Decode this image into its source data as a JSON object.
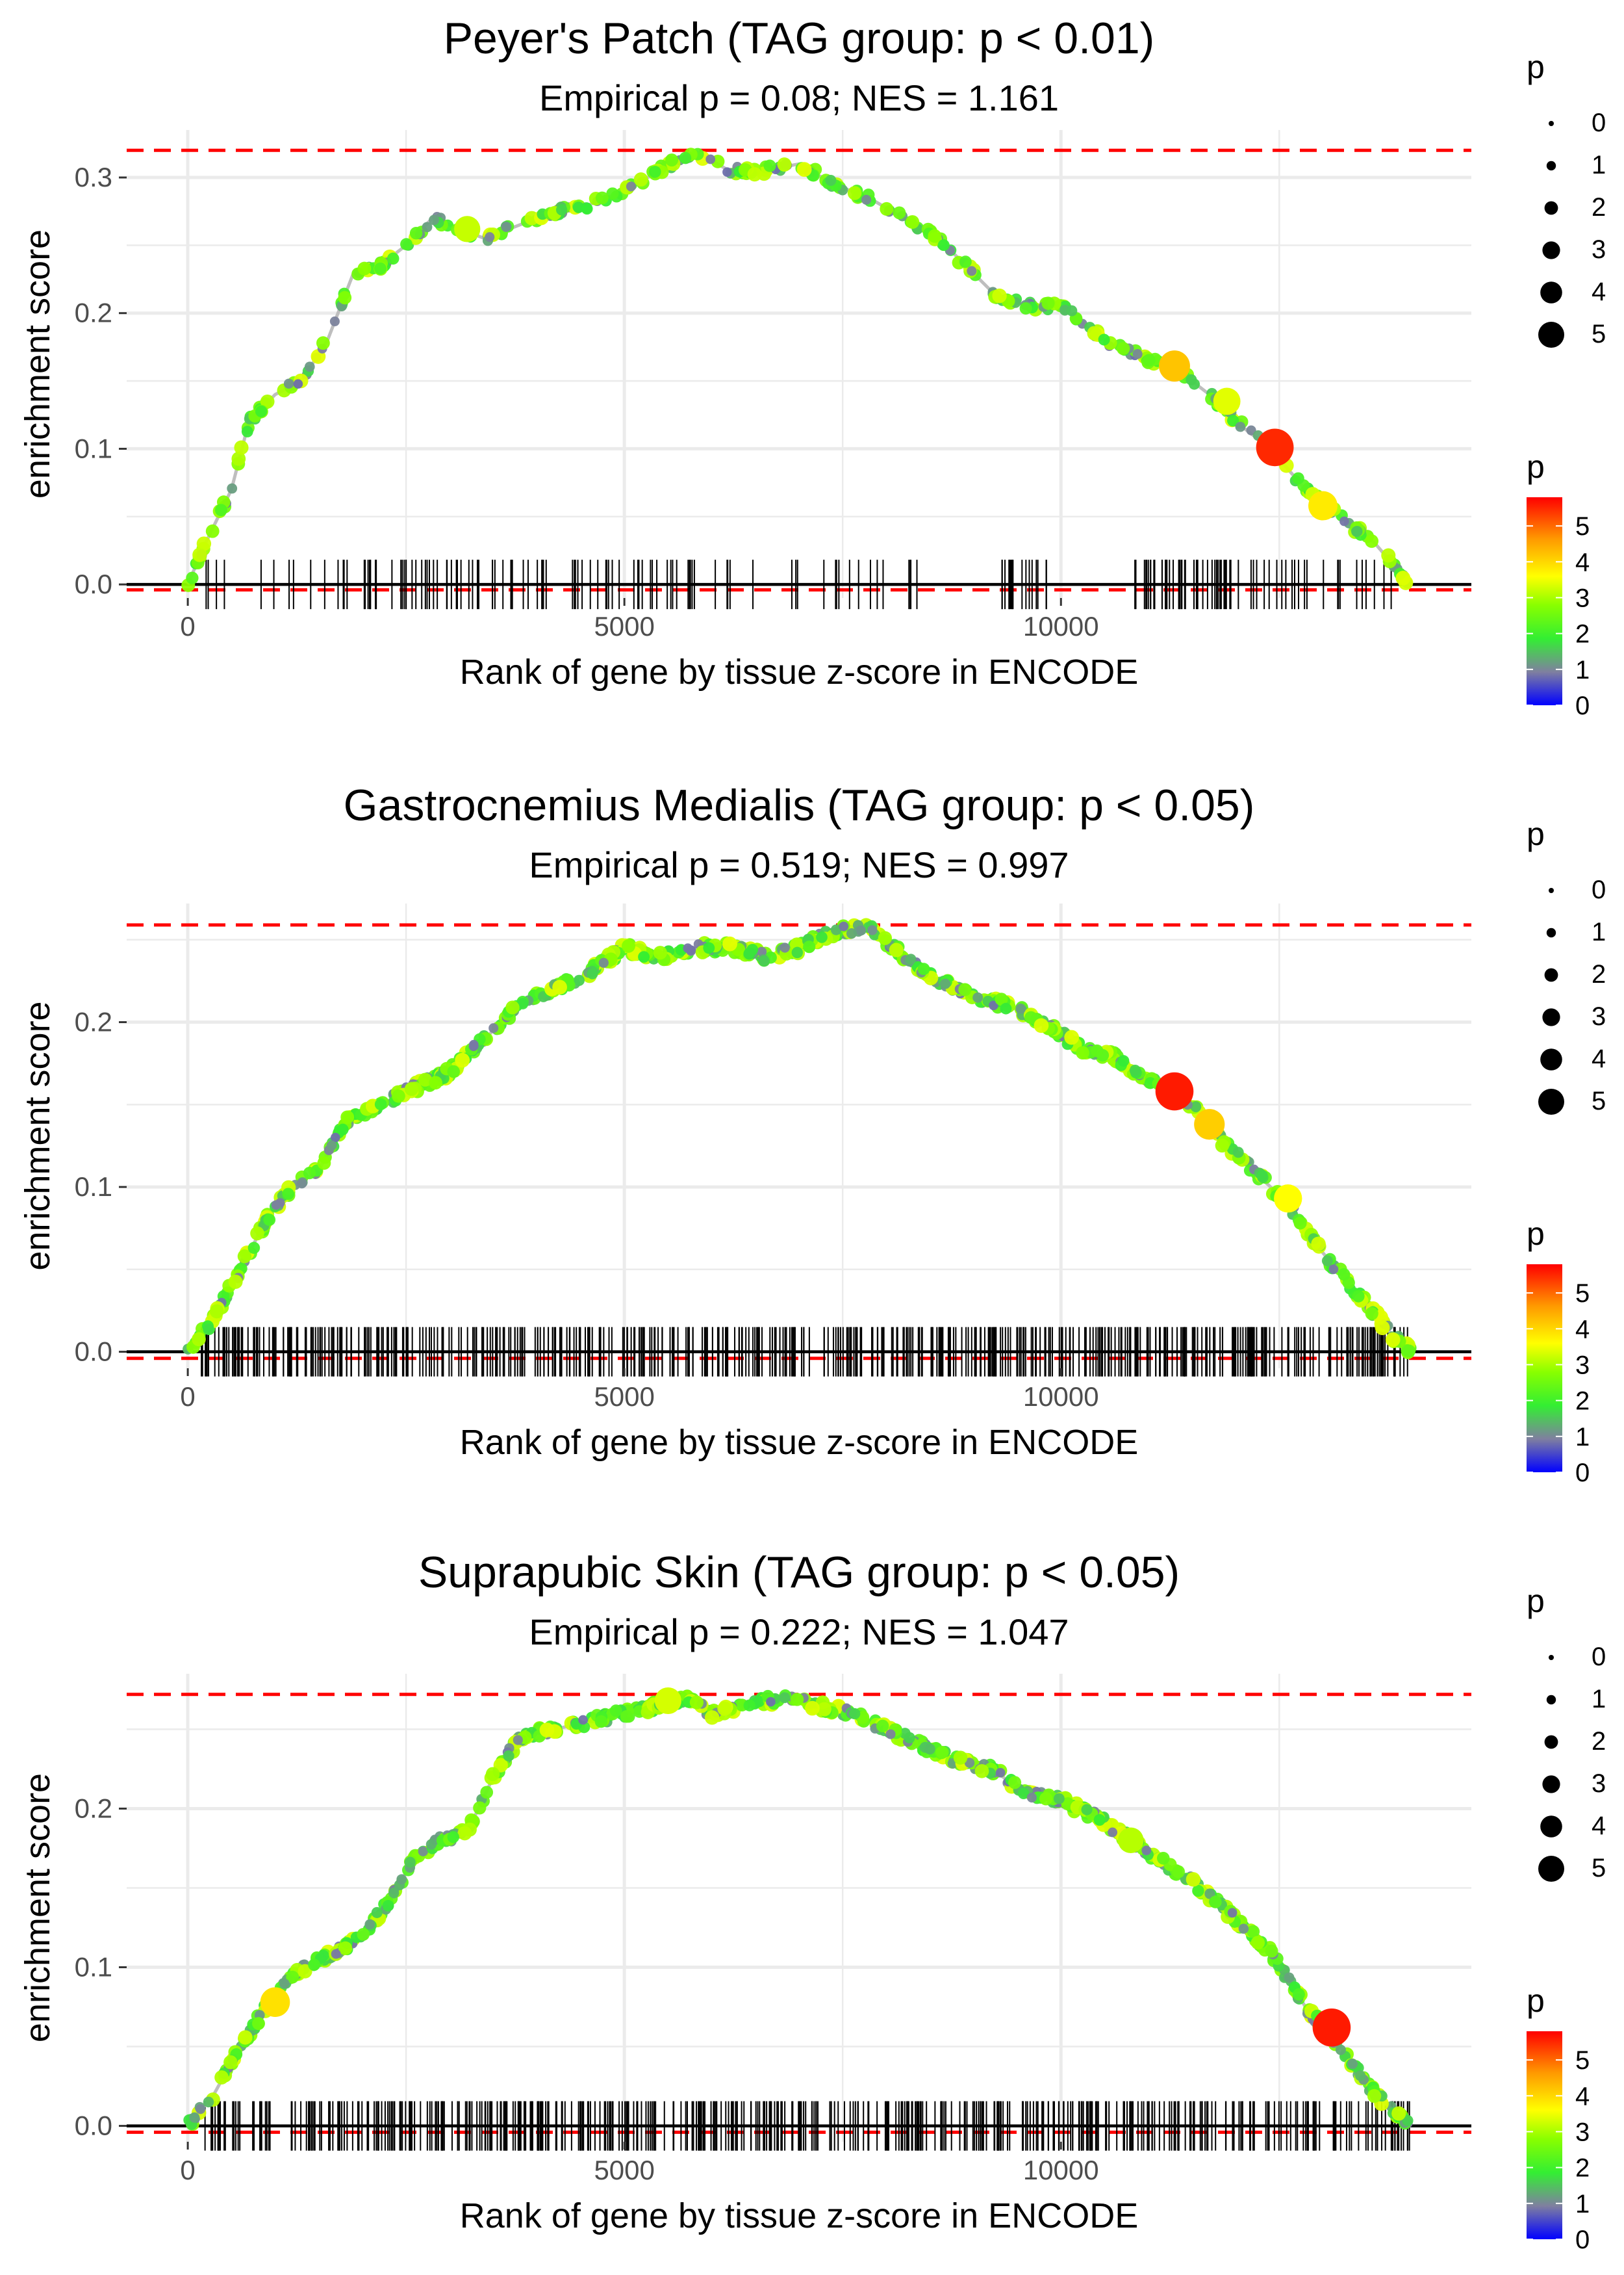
{
  "chart_data": [
    {
      "type": "line",
      "title": "Peyer's Patch (TAG group: p < 0.01)",
      "subtitle": "Empirical p = 0.08; NES = 1.161",
      "xlabel": "Rank of gene by tissue z-score in ENCODE",
      "ylabel": "enrichment score",
      "xlim": [
        -700,
        14700
      ],
      "ylim": [
        -0.01,
        0.335
      ],
      "xticks": [
        0,
        5000,
        10000
      ],
      "xtick_labels": [
        "0",
        "5000",
        "10000"
      ],
      "yticks": [
        0.0,
        0.1,
        0.2,
        0.3
      ],
      "ytick_labels": [
        "0.0",
        "0.1",
        "0.2",
        "0.3"
      ],
      "max_es": 0.32,
      "min_es": -0.004,
      "profile": [
        [
          0,
          0
        ],
        [
          200,
          0.03
        ],
        [
          500,
          0.07
        ],
        [
          700,
          0.12
        ],
        [
          1000,
          0.14
        ],
        [
          1300,
          0.15
        ],
        [
          1600,
          0.18
        ],
        [
          1900,
          0.23
        ],
        [
          2200,
          0.235
        ],
        [
          2500,
          0.25
        ],
        [
          2800,
          0.27
        ],
        [
          3000,
          0.265
        ],
        [
          3400,
          0.255
        ],
        [
          3800,
          0.265
        ],
        [
          4200,
          0.275
        ],
        [
          4600,
          0.28
        ],
        [
          5000,
          0.29
        ],
        [
          5400,
          0.305
        ],
        [
          5800,
          0.32
        ],
        [
          6200,
          0.305
        ],
        [
          6600,
          0.305
        ],
        [
          7000,
          0.31
        ],
        [
          7400,
          0.295
        ],
        [
          7800,
          0.285
        ],
        [
          8200,
          0.27
        ],
        [
          8600,
          0.255
        ],
        [
          9300,
          0.21
        ],
        [
          9700,
          0.205
        ],
        [
          10000,
          0.205
        ],
        [
          10500,
          0.18
        ],
        [
          11000,
          0.165
        ],
        [
          11300,
          0.16
        ],
        [
          11700,
          0.14
        ],
        [
          12100,
          0.115
        ],
        [
          12400,
          0.1
        ],
        [
          12800,
          0.07
        ],
        [
          13200,
          0.05
        ],
        [
          13600,
          0.03
        ],
        [
          14000,
          0
        ]
      ],
      "highlight_points": [
        {
          "rank": 12450,
          "es": 0.101,
          "p": 5.5
        },
        {
          "rank": 11300,
          "es": 0.161,
          "p": 4.2
        },
        {
          "rank": 13000,
          "es": 0.058,
          "p": 3.8
        },
        {
          "rank": 11900,
          "es": 0.135,
          "p": 3.4
        },
        {
          "rank": 3200,
          "es": 0.262,
          "p": 3.2
        }
      ],
      "hits": {
        "segments": [
          [
            100,
            8400,
            110
          ],
          [
            9300,
            9900,
            18
          ],
          [
            10800,
            12000,
            45
          ],
          [
            12000,
            13800,
            25
          ]
        ]
      },
      "legend_size": {
        "title": "p",
        "values": [
          "0",
          "1",
          "2",
          "3",
          "4",
          "5"
        ]
      },
      "legend_color": {
        "title": "p",
        "values": [
          "0",
          "1",
          "2",
          "3",
          "4",
          "5"
        ],
        "max": 5.8
      }
    },
    {
      "type": "line",
      "title": "Gastrocnemius Medialis (TAG group: p < 0.05)",
      "subtitle": "Empirical p = 0.519; NES = 0.997",
      "xlabel": "Rank of gene by tissue z-score in ENCODE",
      "ylabel": "enrichment score",
      "xlim": [
        -700,
        14700
      ],
      "ylim": [
        -0.01,
        0.272
      ],
      "xticks": [
        0,
        5000,
        10000
      ],
      "xtick_labels": [
        "0",
        "5000",
        "10000"
      ],
      "yticks": [
        0.0,
        0.1,
        0.2
      ],
      "ytick_labels": [
        "0.0",
        "0.1",
        "0.2"
      ],
      "max_es": 0.259,
      "min_es": -0.004,
      "profile": [
        [
          0,
          0
        ],
        [
          300,
          0.02
        ],
        [
          600,
          0.05
        ],
        [
          900,
          0.08
        ],
        [
          1200,
          0.1
        ],
        [
          1500,
          0.11
        ],
        [
          1800,
          0.14
        ],
        [
          2200,
          0.15
        ],
        [
          2600,
          0.16
        ],
        [
          3000,
          0.17
        ],
        [
          3400,
          0.19
        ],
        [
          3800,
          0.21
        ],
        [
          4200,
          0.22
        ],
        [
          4600,
          0.23
        ],
        [
          5000,
          0.245
        ],
        [
          5400,
          0.24
        ],
        [
          5800,
          0.245
        ],
        [
          6200,
          0.245
        ],
        [
          6600,
          0.24
        ],
        [
          7000,
          0.245
        ],
        [
          7400,
          0.255
        ],
        [
          7800,
          0.258
        ],
        [
          8200,
          0.24
        ],
        [
          8600,
          0.225
        ],
        [
          9000,
          0.215
        ],
        [
          9400,
          0.21
        ],
        [
          9800,
          0.2
        ],
        [
          10200,
          0.185
        ],
        [
          10600,
          0.18
        ],
        [
          11000,
          0.165
        ],
        [
          11400,
          0.155
        ],
        [
          11800,
          0.13
        ],
        [
          12200,
          0.11
        ],
        [
          12600,
          0.09
        ],
        [
          13000,
          0.06
        ],
        [
          13400,
          0.035
        ],
        [
          13800,
          0.01
        ],
        [
          14000,
          0
        ]
      ],
      "highlight_points": [
        {
          "rank": 11300,
          "es": 0.158,
          "p": 5.6
        },
        {
          "rank": 11700,
          "es": 0.138,
          "p": 4.1
        },
        {
          "rank": 12600,
          "es": 0.093,
          "p": 3.6
        }
      ],
      "hits": {
        "segments": [
          [
            150,
            14000,
            520
          ]
        ]
      },
      "legend_size": {
        "title": "p",
        "values": [
          "0",
          "1",
          "2",
          "3",
          "4",
          "5"
        ]
      },
      "legend_color": {
        "title": "p",
        "values": [
          "0",
          "1",
          "2",
          "3",
          "4",
          "5"
        ],
        "max": 5.8
      }
    },
    {
      "type": "line",
      "title": "Suprapubic Skin (TAG group: p < 0.05)",
      "subtitle": "Empirical p = 0.222; NES = 1.047",
      "xlabel": "Rank of gene by tissue z-score in ENCODE",
      "ylabel": "enrichment score",
      "xlim": [
        -700,
        14700
      ],
      "ylim": [
        -0.01,
        0.285
      ],
      "xticks": [
        0,
        5000,
        10000
      ],
      "xtick_labels": [
        "0",
        "5000",
        "10000"
      ],
      "yticks": [
        0.0,
        0.1,
        0.2
      ],
      "ytick_labels": [
        "0.0",
        "0.1",
        "0.2"
      ],
      "max_es": 0.272,
      "min_es": -0.004,
      "profile": [
        [
          0,
          0
        ],
        [
          300,
          0.02
        ],
        [
          600,
          0.05
        ],
        [
          900,
          0.075
        ],
        [
          1200,
          0.095
        ],
        [
          1500,
          0.105
        ],
        [
          1900,
          0.115
        ],
        [
          2300,
          0.14
        ],
        [
          2600,
          0.17
        ],
        [
          2900,
          0.18
        ],
        [
          3200,
          0.185
        ],
        [
          3500,
          0.22
        ],
        [
          3800,
          0.245
        ],
        [
          4200,
          0.25
        ],
        [
          4600,
          0.255
        ],
        [
          5000,
          0.26
        ],
        [
          5400,
          0.265
        ],
        [
          5700,
          0.27
        ],
        [
          6000,
          0.26
        ],
        [
          6400,
          0.265
        ],
        [
          6800,
          0.27
        ],
        [
          7200,
          0.265
        ],
        [
          7600,
          0.26
        ],
        [
          8000,
          0.25
        ],
        [
          8400,
          0.24
        ],
        [
          8800,
          0.23
        ],
        [
          9200,
          0.225
        ],
        [
          9600,
          0.21
        ],
        [
          10000,
          0.205
        ],
        [
          10400,
          0.195
        ],
        [
          10800,
          0.18
        ],
        [
          11200,
          0.165
        ],
        [
          11600,
          0.15
        ],
        [
          12000,
          0.13
        ],
        [
          12400,
          0.11
        ],
        [
          12800,
          0.075
        ],
        [
          13200,
          0.05
        ],
        [
          13600,
          0.02
        ],
        [
          14000,
          0
        ]
      ],
      "highlight_points": [
        {
          "rank": 13100,
          "es": 0.062,
          "p": 5.6
        },
        {
          "rank": 1000,
          "es": 0.078,
          "p": 3.9
        },
        {
          "rank": 5500,
          "es": 0.268,
          "p": 3.3
        },
        {
          "rank": 10800,
          "es": 0.18,
          "p": 3.1
        }
      ],
      "hits": {
        "segments": [
          [
            150,
            14000,
            480
          ]
        ]
      },
      "legend_size": {
        "title": "p",
        "values": [
          "0",
          "1",
          "2",
          "3",
          "4",
          "5"
        ]
      },
      "legend_color": {
        "title": "p",
        "values": [
          "0",
          "1",
          "2",
          "3",
          "4",
          "5"
        ],
        "max": 5.8
      }
    }
  ]
}
